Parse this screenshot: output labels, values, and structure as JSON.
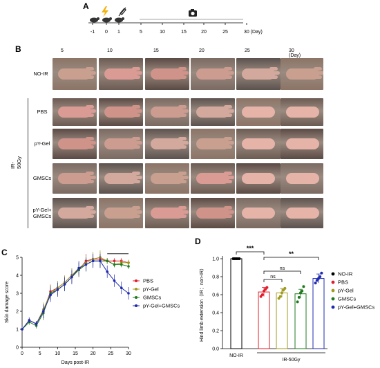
{
  "panel_labels": {
    "a": "A",
    "b": "B",
    "c": "C",
    "d": "D"
  },
  "timeline": {
    "ticks": [
      "-1",
      "0",
      "1",
      "5",
      "10",
      "15",
      "20",
      "25",
      "30 (Day)"
    ]
  },
  "photo_grid": {
    "column_days": [
      "5",
      "10",
      "15",
      "20",
      "25",
      "30 (Day)"
    ],
    "rows": [
      "NO-IR",
      "PBS",
      "pY-Gel",
      "GMSCs",
      "pY-Gel+\nGMSCs"
    ],
    "group_label": "IR-50Gy"
  },
  "colors": {
    "noir": "#000000",
    "pbs": "#e11d2a",
    "pygel": "#a09a1f",
    "gmscs": "#1f7a1f",
    "combo": "#1f2ab0",
    "skin": "#d8a39a"
  },
  "chart_data": [
    {
      "type": "line",
      "xlabel": "Days post-IR",
      "ylabel": "Skin damage score",
      "xlim": [
        0,
        30
      ],
      "ylim": [
        0,
        5
      ],
      "xticks": [
        "0",
        "5",
        "10",
        "15",
        "20",
        "25",
        "30"
      ],
      "yticks": [
        "0",
        "1",
        "2",
        "3",
        "4",
        "5"
      ],
      "significance": "***",
      "grid": false,
      "legend_position": "right",
      "x": [
        0,
        2,
        4,
        6,
        8,
        10,
        12,
        14,
        16,
        18,
        20,
        22,
        24,
        26,
        28,
        30
      ],
      "series": [
        {
          "name": "PBS",
          "color": "#e11d2a",
          "values": [
            1.0,
            1.5,
            1.3,
            2.0,
            3.1,
            3.3,
            3.6,
            4.0,
            4.3,
            4.8,
            4.9,
            4.9,
            4.8,
            4.8,
            4.8,
            4.7
          ]
        },
        {
          "name": "pY-Gel",
          "color": "#a09a1f",
          "values": [
            1.0,
            1.5,
            1.3,
            2.1,
            3.0,
            3.3,
            3.6,
            4.0,
            4.4,
            4.7,
            4.9,
            5.0,
            4.8,
            4.6,
            4.7,
            4.7
          ]
        },
        {
          "name": "GMSCs",
          "color": "#1f7a1f",
          "values": [
            1.0,
            1.4,
            1.2,
            1.9,
            3.0,
            3.2,
            3.5,
            3.9,
            4.3,
            4.6,
            4.8,
            4.8,
            4.8,
            4.6,
            4.6,
            4.5
          ]
        },
        {
          "name": "pY-Gel+GMSCs",
          "color": "#1f2ab0",
          "values": [
            1.0,
            1.5,
            1.3,
            2.0,
            2.9,
            3.2,
            3.5,
            3.9,
            4.4,
            4.6,
            4.8,
            4.8,
            4.2,
            3.7,
            3.3,
            3.0
          ]
        }
      ]
    },
    {
      "type": "bar",
      "ylabel": "Hind limb extension（IR：non-IR）",
      "ylim": [
        0,
        1.0
      ],
      "yticks": [
        "0.0",
        "0.2",
        "0.4",
        "0.6",
        "0.8",
        "1.0"
      ],
      "categories": [
        "NO-IR",
        "PBS",
        "pY-Gel",
        "GMSCs",
        "pY-Gel+GMSCs"
      ],
      "values": [
        1.0,
        0.63,
        0.62,
        0.61,
        0.78
      ],
      "points": [
        [
          1.0,
          1.0,
          1.0,
          1.0,
          1.0
        ],
        [
          0.58,
          0.6,
          0.64,
          0.66,
          0.68
        ],
        [
          0.56,
          0.58,
          0.62,
          0.65,
          0.67
        ],
        [
          0.52,
          0.57,
          0.62,
          0.64,
          0.69
        ],
        [
          0.73,
          0.76,
          0.78,
          0.8,
          0.84
        ]
      ],
      "colors": [
        "#000000",
        "#e11d2a",
        "#a09a1f",
        "#1f7a1f",
        "#1f2ab0"
      ],
      "x_group_labels": [
        "NO-IR",
        "IR-50Gy"
      ],
      "significance": [
        {
          "label": "***",
          "from": "NO-IR",
          "to": "PBS"
        },
        {
          "label": "ns",
          "from": "PBS",
          "to": "pY-Gel"
        },
        {
          "label": "ns",
          "from": "PBS",
          "to": "GMSCs"
        },
        {
          "label": "**",
          "from": "PBS",
          "to": "pY-Gel+GMSCs"
        }
      ],
      "legend": [
        "NO-IR",
        "PBS",
        "pY-Gel",
        "GMSCs",
        "pY-Gel+GMSCs"
      ]
    }
  ]
}
